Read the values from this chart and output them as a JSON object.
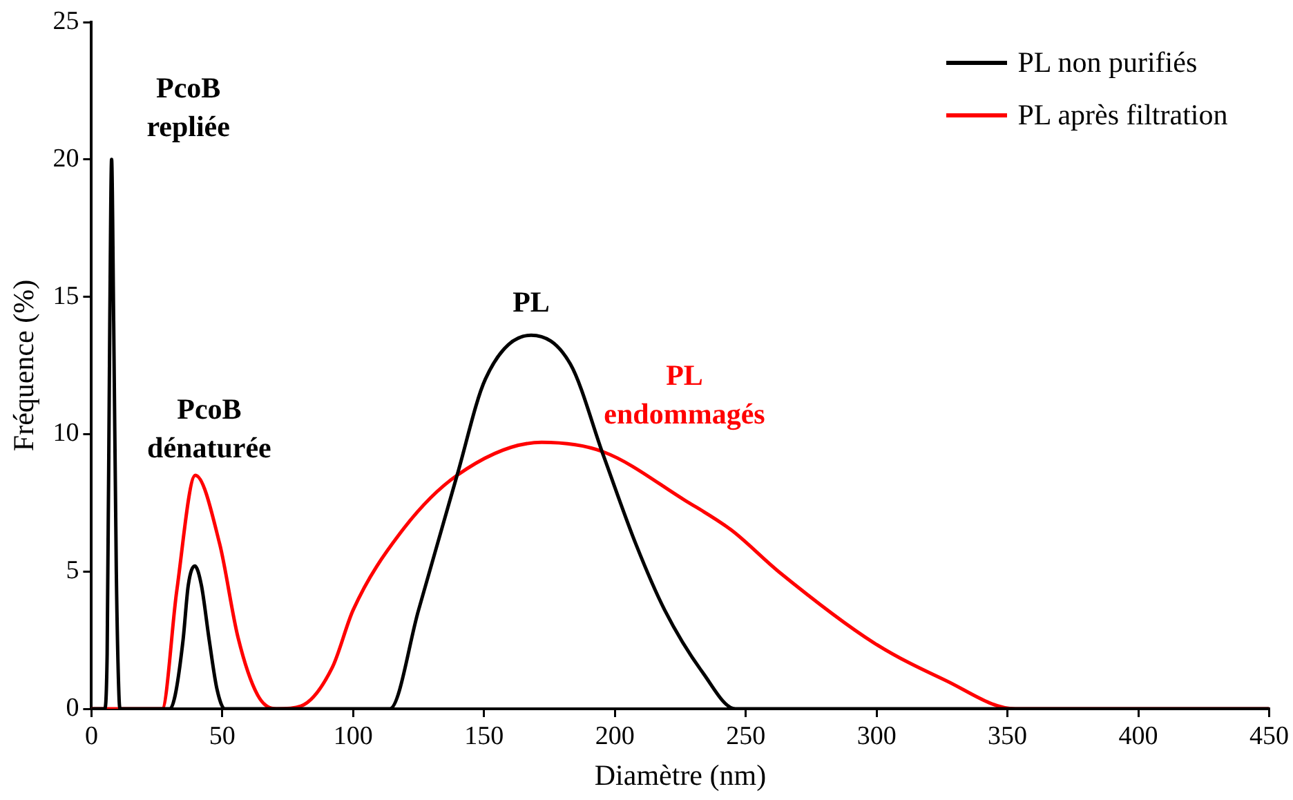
{
  "chart_data": {
    "type": "line",
    "xlabel": "Diamètre (nm)",
    "ylabel": "Fréquence (%)",
    "xlim": [
      0,
      450
    ],
    "xticks": [
      0,
      50,
      100,
      150,
      200,
      250,
      300,
      350,
      400,
      450
    ],
    "ylim": [
      0,
      25
    ],
    "yticks": [
      0,
      5,
      10,
      15,
      20,
      25
    ],
    "grid": false,
    "legend": "top right",
    "marker": "none",
    "line_style": "solid",
    "series": [
      {
        "name": "PL non purifiés",
        "color": "#000000",
        "x": [
          0,
          5,
          6,
          7,
          7.7,
          8.5,
          9.5,
          10.5,
          11,
          30,
          32,
          35,
          37,
          39.5,
          42,
          45,
          48,
          51,
          114,
          125,
          139.7,
          150.5,
          168,
          183,
          195.7,
          208,
          219,
          233.7,
          246,
          450
        ],
        "values": [
          0,
          0,
          2,
          14,
          20,
          14,
          5,
          0.5,
          0,
          0,
          0.5,
          2.5,
          4.5,
          5.2,
          4.5,
          2.5,
          0.7,
          0,
          0,
          3.6,
          8.5,
          12,
          13.6,
          12.55,
          9.2,
          6,
          3.6,
          1.3,
          0,
          0
        ]
      },
      {
        "name": "PL après filtration",
        "color": "#ff0000",
        "x": [
          0,
          27,
          32.6,
          39.7,
          49,
          56,
          63.5,
          70.7,
          80,
          92,
          100,
          118,
          139.7,
          172,
          195.7,
          226.6,
          244.6,
          262.5,
          299,
          326,
          353,
          450
        ],
        "values": [
          0,
          0,
          4.3,
          8.5,
          6,
          2.6,
          0.5,
          0,
          0.1,
          1.5,
          3.6,
          6.4,
          8.5,
          9.7,
          9.35,
          7.6,
          6.5,
          5,
          2.4,
          1.05,
          0,
          0
        ]
      }
    ],
    "annotations": [
      {
        "text": "PcoB\nrepliée",
        "x": 7.7,
        "y": 20
      },
      "PcoB\ndénaturée",
      {
        "text": "PL",
        "x": 168,
        "y": 13.6
      },
      {
        "text": "PL\nendommagés",
        "x": 226.6,
        "y": 7.6
      }
    ]
  }
}
